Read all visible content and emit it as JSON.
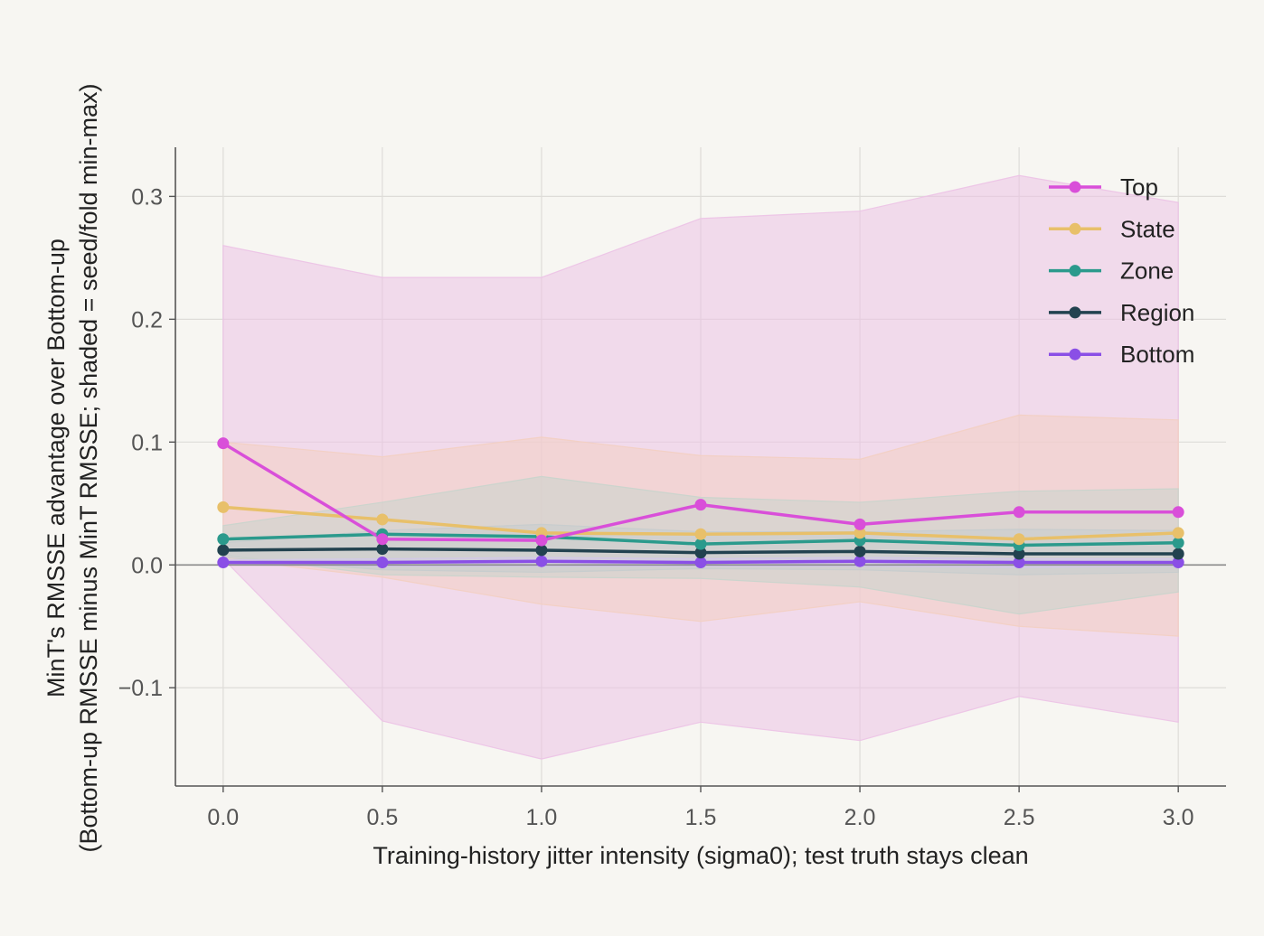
{
  "chart_data": {
    "type": "line",
    "title": "",
    "xlabel": "Training-history jitter intensity (sigma0); test truth stays clean",
    "ylabel_line1": "MinT's RMSSE advantage over Bottom-up",
    "ylabel_line2": "(Bottom-up RMSSE minus MinT RMSSE; shaded = seed/fold min-max)",
    "x": [
      0.0,
      0.5,
      1.0,
      1.5,
      2.0,
      2.5,
      3.0
    ],
    "x_tick_labels": [
      "0.0",
      "0.5",
      "1.0",
      "1.5",
      "2.0",
      "2.5",
      "3.0"
    ],
    "y_ticks": [
      -0.1,
      0.0,
      0.1,
      0.2,
      0.3
    ],
    "y_tick_labels": [
      "−0.1",
      "0.0",
      "0.1",
      "0.2",
      "0.3"
    ],
    "xlim": [
      -0.15,
      3.15
    ],
    "ylim": [
      -0.18,
      0.34
    ],
    "grid": true,
    "zero_line": true,
    "legend_position": "top-right",
    "series": [
      {
        "name": "Top",
        "color": "#d94fd9",
        "band_color": "#ecc2e6",
        "values": [
          0.099,
          0.021,
          0.02,
          0.049,
          0.033,
          0.043,
          0.043
        ],
        "band_upper": [
          0.26,
          0.234,
          0.234,
          0.282,
          0.288,
          0.317,
          0.295
        ],
        "band_lower": [
          0.005,
          -0.127,
          -0.158,
          -0.128,
          -0.143,
          -0.107,
          -0.128
        ]
      },
      {
        "name": "State",
        "color": "#e8c06a",
        "band_color": "#f3cfc2",
        "values": [
          0.047,
          0.037,
          0.026,
          0.025,
          0.026,
          0.021,
          0.026
        ],
        "band_upper": [
          0.1,
          0.088,
          0.104,
          0.089,
          0.086,
          0.122,
          0.118
        ],
        "band_lower": [
          0.005,
          -0.01,
          -0.032,
          -0.046,
          -0.03,
          -0.05,
          -0.058
        ]
      },
      {
        "name": "Zone",
        "color": "#2b9a8c",
        "band_color": "#c9d4cc",
        "values": [
          0.021,
          0.025,
          0.023,
          0.017,
          0.02,
          0.016,
          0.018
        ],
        "band_upper": [
          0.032,
          0.051,
          0.072,
          0.055,
          0.051,
          0.06,
          0.062
        ],
        "band_lower": [
          0.008,
          -0.008,
          -0.01,
          -0.011,
          -0.018,
          -0.04,
          -0.022
        ]
      },
      {
        "name": "Region",
        "color": "#22424f",
        "band_color": "#c6cccd",
        "values": [
          0.012,
          0.013,
          0.012,
          0.01,
          0.011,
          0.009,
          0.009
        ],
        "band_upper": [
          0.018,
          0.028,
          0.033,
          0.027,
          0.027,
          0.029,
          0.028
        ],
        "band_lower": [
          0.006,
          -0.004,
          -0.006,
          -0.003,
          -0.004,
          -0.008,
          -0.006
        ]
      },
      {
        "name": "Bottom",
        "color": "#8a4fe6",
        "band_color": "#d2c8ea",
        "values": [
          0.002,
          0.002,
          0.003,
          0.002,
          0.003,
          0.002,
          0.002
        ],
        "band_upper": [
          0.004,
          0.005,
          0.006,
          0.005,
          0.006,
          0.005,
          0.005
        ],
        "band_lower": [
          0.0,
          -0.001,
          -0.001,
          -0.001,
          -0.001,
          -0.002,
          -0.001
        ]
      }
    ]
  }
}
